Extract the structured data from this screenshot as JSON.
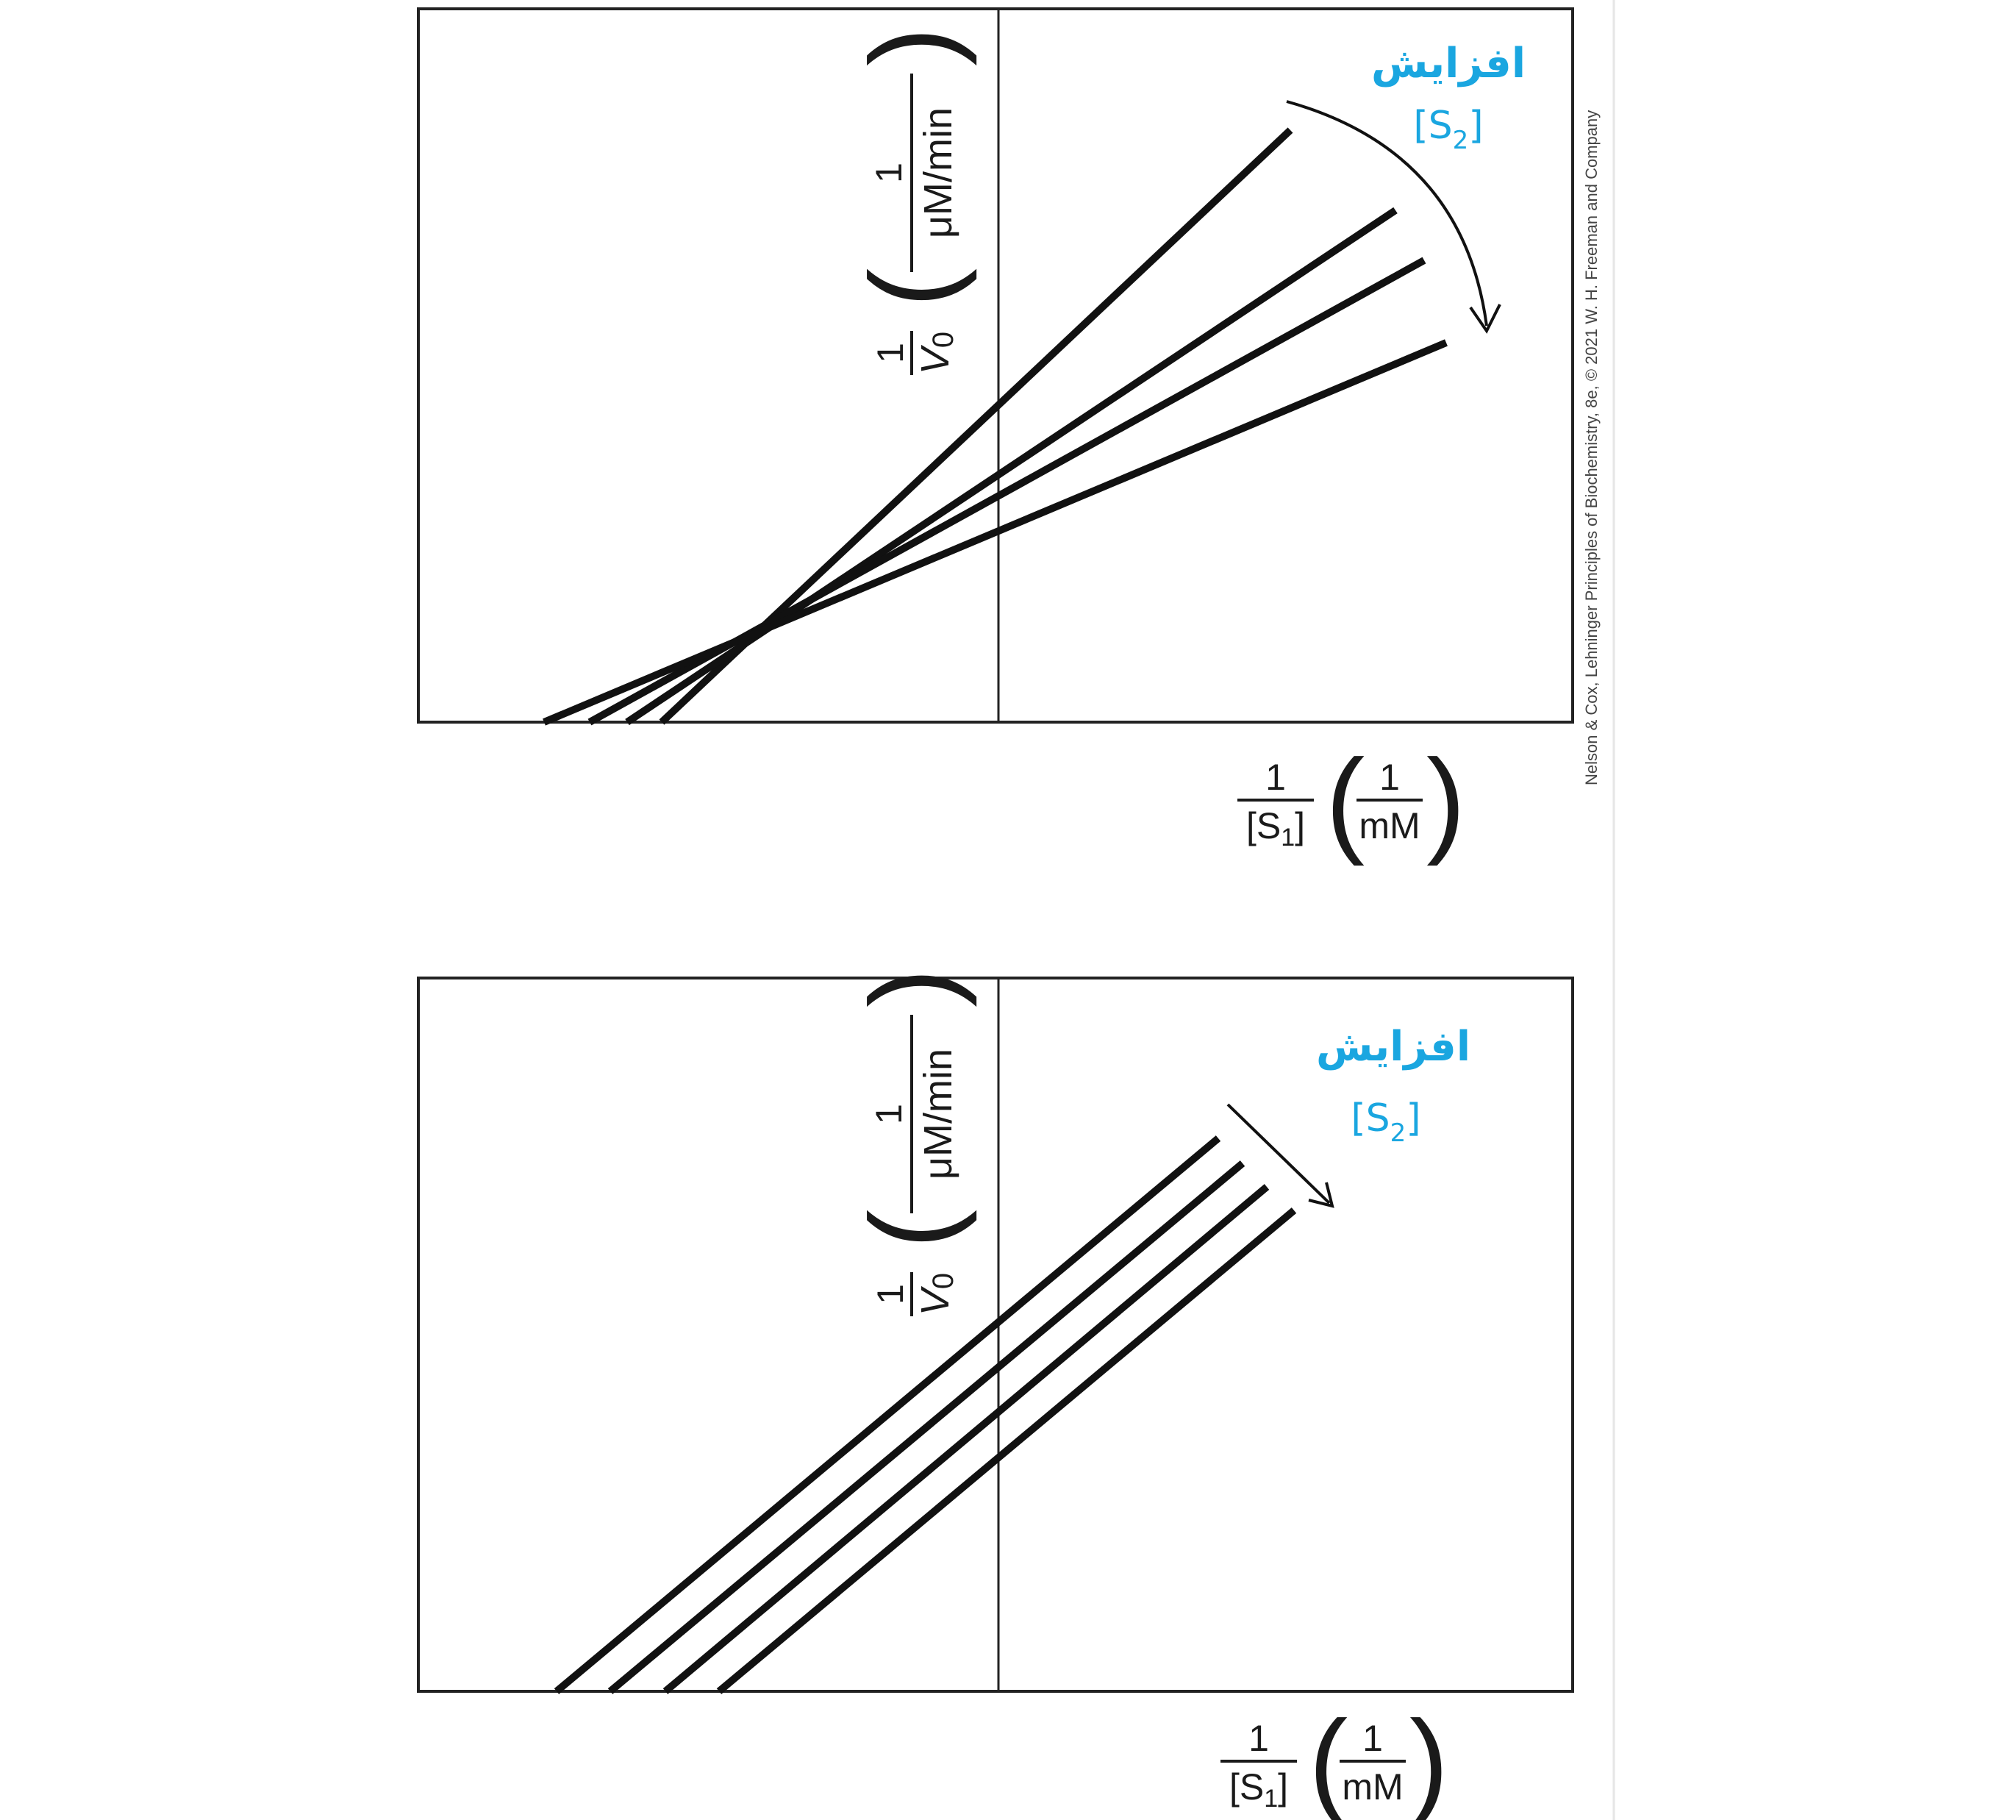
{
  "colors": {
    "accent": "#1AA6E0",
    "ink": "#1a1a1a",
    "frame": "#222222",
    "divider": "#e6e6e6"
  },
  "credit": "Nelson & Cox, Lehninger Principles of Biochemistry, 8e, © 2021 W. H. Freeman and Company",
  "panels": [
    {
      "annotation": {
        "word": "افزایش",
        "s_label": "[S",
        "s_sub": "2",
        "s_close": "]"
      },
      "y_axis": {
        "num": "1",
        "den_v": "V",
        "den_sub": "0",
        "unit_num": "1",
        "unit_den": "μM/min"
      },
      "x_axis": {
        "num": "1",
        "den": "[S",
        "den_sub": "1",
        "den_close": "]",
        "unit_num": "1",
        "unit_den": "mM"
      },
      "line_count": 4,
      "arrow_icon": "curved-arrow-icon"
    },
    {
      "annotation": {
        "word": "افزایش",
        "s_label": "[S",
        "s_sub": "2",
        "s_close": "]"
      },
      "y_axis": {
        "num": "1",
        "den_v": "V",
        "den_sub": "0",
        "unit_num": "1",
        "unit_den": "μM/min"
      },
      "x_axis": {
        "num": "1",
        "den": "[S",
        "den_sub": "1",
        "den_close": "]",
        "unit_num": "1",
        "unit_den": "mM"
      },
      "line_count": 4,
      "arrow_icon": "straight-arrow-icon"
    }
  ]
}
